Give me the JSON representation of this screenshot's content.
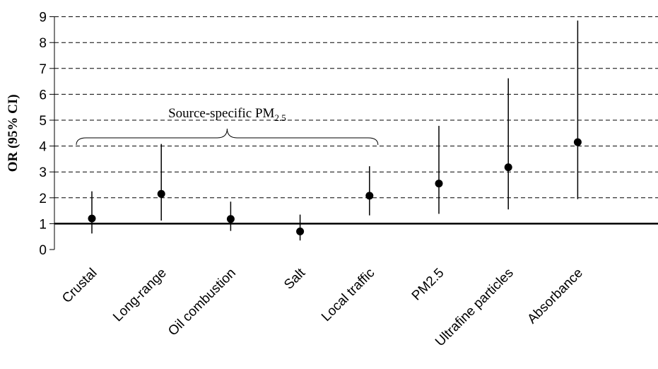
{
  "chart_data": {
    "type": "scatter",
    "title": "",
    "xlabel": "",
    "ylabel": "OR (95% CI)",
    "ylim": [
      0,
      9
    ],
    "yticks": [
      "0",
      "1",
      "2",
      "3",
      "4",
      "5",
      "6",
      "7",
      "8",
      "9"
    ],
    "grid": "horizontal dashed",
    "reference_line": 1,
    "categories": [
      "Crustal",
      "Long-range",
      "Oil combustion",
      "Salt",
      "Local traffic",
      "PM2.5",
      "Ultrafine particles",
      "Absorbance"
    ],
    "series": [
      {
        "estimate": [
          1.2,
          2.15,
          1.18,
          0.7,
          2.08,
          2.55,
          3.18,
          4.15
        ],
        "ci_lower": [
          0.62,
          1.12,
          0.72,
          0.35,
          1.32,
          1.38,
          1.55,
          1.95
        ],
        "ci_upper": [
          2.25,
          4.08,
          1.85,
          1.35,
          3.22,
          4.78,
          6.62,
          8.85
        ]
      }
    ],
    "annotation": {
      "text": "Source-specific PM",
      "subscript": "2.5",
      "spans_categories": [
        "Crustal",
        "Local traffic"
      ]
    }
  }
}
